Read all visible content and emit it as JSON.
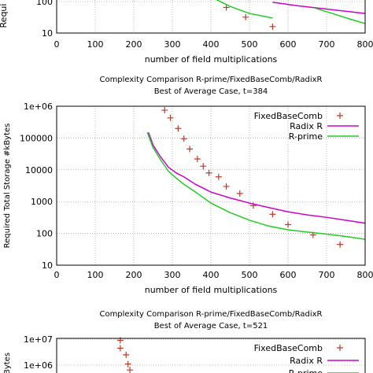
{
  "colors": {
    "fixed": "#c0392b",
    "radix": "#cc00cc",
    "rprime": "#22cc22",
    "grid": "#888888"
  },
  "chart_data": [
    {
      "type": "line",
      "title": "",
      "subtitle": "",
      "xlabel": "number of field multiplications",
      "ylabel": "Requi",
      "x_ticks": [
        "0",
        "100",
        "200",
        "300",
        "400",
        "500",
        "600",
        "700",
        "800"
      ],
      "y_ticks": [
        "10",
        "100"
      ],
      "xlim": [
        0,
        800
      ],
      "ylim": [
        10,
        140
      ],
      "log_y": true,
      "grid": true,
      "legend": "",
      "series": [
        {
          "name": "",
          "style": "points",
          "color": "fixed",
          "x": [
            440,
            490,
            560
          ],
          "y": [
            65,
            32,
            16
          ]
        },
        {
          "name": "",
          "style": "line",
          "color": "radix",
          "x": [
            560,
            620,
            700,
            800
          ],
          "y": [
            95,
            75,
            58,
            42
          ]
        },
        {
          "name": "",
          "style": "line",
          "color": "rprime",
          "x": [
            400,
            450,
            500,
            560
          ],
          "y": [
            140,
            70,
            42,
            30
          ]
        },
        {
          "name": "",
          "style": "line",
          "color": "rprime",
          "x": [
            670,
            720,
            760,
            800
          ],
          "y": [
            62,
            40,
            28,
            20
          ]
        }
      ]
    },
    {
      "type": "line",
      "title": "Complexity Comparison R-prime/FixedBaseComb/RadixR",
      "subtitle": "Best of Average Case, t=384",
      "xlabel": "number of field multiplications",
      "ylabel": "Required Total Storage #kBytes",
      "x_ticks": [
        "0",
        "100",
        "200",
        "300",
        "400",
        "500",
        "600",
        "700",
        "800"
      ],
      "y_ticks": [
        "10",
        "100",
        "1000",
        "10000",
        "100000",
        "1e+06"
      ],
      "xlim": [
        0,
        800
      ],
      "ylim": [
        10,
        1000000
      ],
      "log_y": true,
      "grid": true,
      "legend": "top-right",
      "series": [
        {
          "name": "FixedBaseComb",
          "style": "points",
          "color": "fixed",
          "x": [
            280,
            295,
            315,
            330,
            345,
            365,
            380,
            395,
            420,
            440,
            475,
            510,
            560,
            600,
            665,
            735
          ],
          "y": [
            750000,
            430000,
            200000,
            95000,
            45000,
            22000,
            13000,
            8000,
            6000,
            3000,
            1800,
            750,
            400,
            190,
            90,
            45
          ]
        },
        {
          "name": "Radix R",
          "style": "line",
          "color": "radix",
          "x": [
            238,
            250,
            270,
            290,
            310,
            330,
            360,
            400,
            450,
            500,
            550,
            600,
            650,
            700,
            750,
            800
          ],
          "y": [
            150000,
            60000,
            25000,
            12000,
            8000,
            6000,
            3500,
            2000,
            1300,
            900,
            650,
            480,
            380,
            320,
            260,
            210
          ]
        },
        {
          "name": "R-prime",
          "style": "line",
          "color": "rprime",
          "x": [
            235,
            250,
            270,
            290,
            310,
            330,
            360,
            400,
            450,
            500,
            550,
            600,
            650,
            700,
            750,
            800
          ],
          "y": [
            150000,
            50000,
            20000,
            9000,
            5500,
            3500,
            2000,
            900,
            450,
            260,
            170,
            130,
            110,
            95,
            80,
            65
          ]
        }
      ]
    },
    {
      "type": "line",
      "title": "Complexity Comparison R-prime/FixedBaseComb/RadixR",
      "subtitle": "Best of Average Case, t=521",
      "xlabel": "",
      "ylabel": "Bytes",
      "x_ticks": [],
      "y_ticks": [
        "1e+06",
        "1e+07"
      ],
      "xlim": [
        0,
        800
      ],
      "ylim": [
        400000,
        10000000
      ],
      "log_y": true,
      "grid": true,
      "legend": "top-right",
      "series": [
        {
          "name": "FixedBaseComb",
          "style": "points",
          "color": "fixed",
          "x": [
            165,
            165,
            180,
            185,
            190
          ],
          "y": [
            9000000,
            4500000,
            2500000,
            1100000,
            650000
          ]
        },
        {
          "name": "Radix R",
          "style": "line",
          "color": "radix",
          "x": [],
          "y": []
        },
        {
          "name": "R-prime",
          "style": "line",
          "color": "rprime",
          "x": [],
          "y": []
        }
      ]
    }
  ]
}
